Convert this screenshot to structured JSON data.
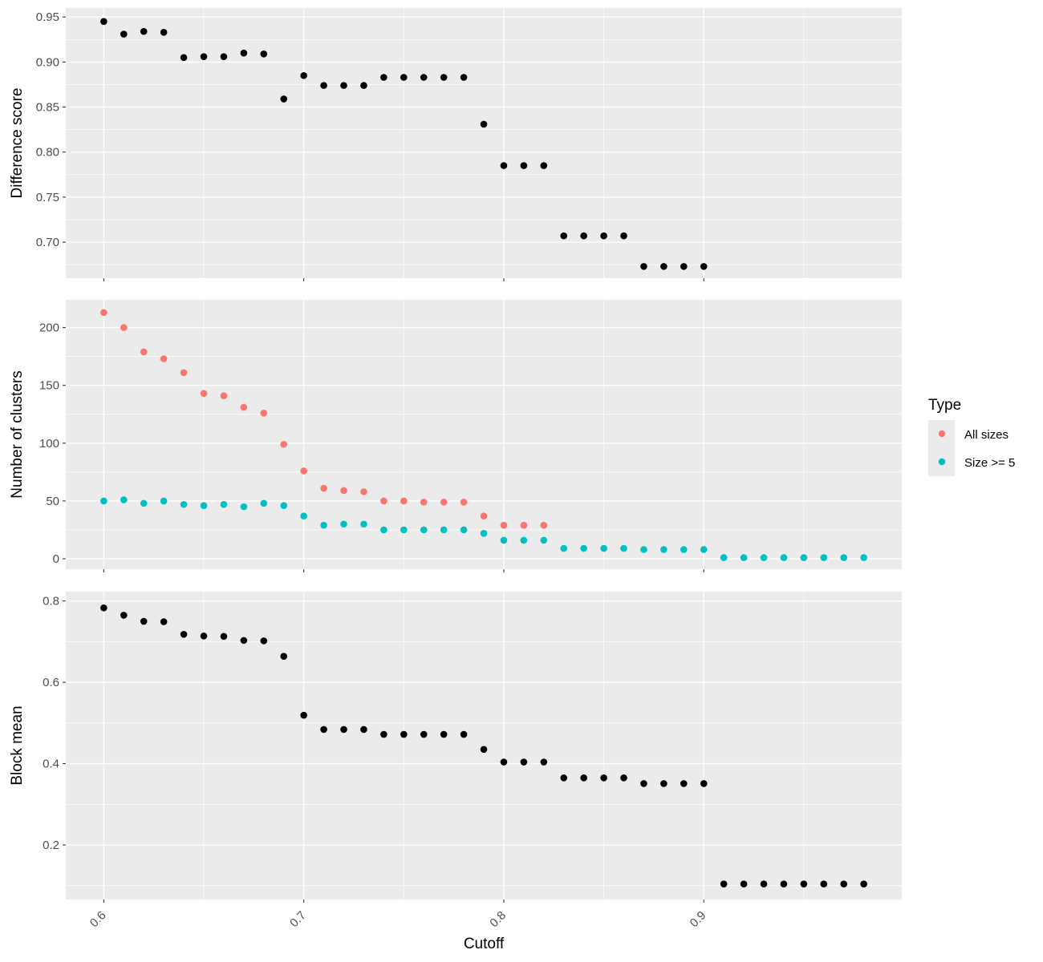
{
  "x_axis": {
    "label": "Cutoff",
    "range": [
      0.581,
      0.999
    ],
    "ticks": [
      0.6,
      0.7,
      0.8,
      0.9
    ],
    "tick_labels": [
      "0.6",
      "0.7",
      "0.8",
      "0.9"
    ]
  },
  "legend": {
    "title": "Type",
    "placement": "right",
    "entries": [
      {
        "label": "All sizes",
        "color": "#F8766D"
      },
      {
        "label": "Size >= 5",
        "color": "#00BFC4"
      }
    ]
  },
  "chart_data": [
    {
      "type": "scatter",
      "ylabel": "Difference score",
      "ylim": [
        0.66,
        0.96
      ],
      "yticks": [
        0.7,
        0.75,
        0.8,
        0.85,
        0.9,
        0.95
      ],
      "ytick_labels": [
        "0.70",
        "0.75",
        "0.80",
        "0.85",
        "0.90",
        "0.95"
      ],
      "grid": true,
      "series": [
        {
          "color": "#000000",
          "x": [
            0.6,
            0.61,
            0.62,
            0.63,
            0.64,
            0.65,
            0.66,
            0.67,
            0.68,
            0.69,
            0.7,
            0.71,
            0.72,
            0.73,
            0.74,
            0.75,
            0.76,
            0.77,
            0.78,
            0.79,
            0.8,
            0.81,
            0.82,
            0.83,
            0.84,
            0.85,
            0.86,
            0.87,
            0.88,
            0.89,
            0.9
          ],
          "y": [
            0.945,
            0.931,
            0.934,
            0.933,
            0.905,
            0.906,
            0.906,
            0.91,
            0.909,
            0.859,
            0.885,
            0.874,
            0.874,
            0.874,
            0.883,
            0.883,
            0.883,
            0.883,
            0.883,
            0.831,
            0.785,
            0.785,
            0.785,
            0.707,
            0.707,
            0.707,
            0.707,
            0.673,
            0.673,
            0.673,
            0.673
          ]
        }
      ]
    },
    {
      "type": "scatter",
      "ylabel": "Number of clusters",
      "ylim": [
        -9,
        224
      ],
      "yticks": [
        0,
        50,
        100,
        150,
        200
      ],
      "ytick_labels": [
        "0",
        "50",
        "100",
        "150",
        "200"
      ],
      "grid": true,
      "series": [
        {
          "name": "All sizes",
          "color": "#F8766D",
          "x": [
            0.6,
            0.61,
            0.62,
            0.63,
            0.64,
            0.65,
            0.66,
            0.67,
            0.68,
            0.69,
            0.7,
            0.71,
            0.72,
            0.73,
            0.74,
            0.75,
            0.76,
            0.77,
            0.78,
            0.79,
            0.8,
            0.81,
            0.82
          ],
          "y": [
            213,
            200,
            179,
            173,
            161,
            143,
            141,
            131,
            126,
            99,
            76,
            61,
            59,
            58,
            50,
            50,
            49,
            49,
            49,
            37,
            29,
            29,
            29
          ]
        },
        {
          "name": "Size >= 5",
          "color": "#00BFC4",
          "x": [
            0.6,
            0.61,
            0.62,
            0.63,
            0.64,
            0.65,
            0.66,
            0.67,
            0.68,
            0.69,
            0.7,
            0.71,
            0.72,
            0.73,
            0.74,
            0.75,
            0.76,
            0.77,
            0.78,
            0.79,
            0.8,
            0.81,
            0.82,
            0.83,
            0.84,
            0.85,
            0.86,
            0.87,
            0.88,
            0.89,
            0.9,
            0.91,
            0.92,
            0.93,
            0.94,
            0.95,
            0.96,
            0.97,
            0.98
          ],
          "y": [
            50,
            51,
            48,
            50,
            47,
            46,
            47,
            45,
            48,
            46,
            37,
            29,
            30,
            30,
            25,
            25,
            25,
            25,
            25,
            22,
            16,
            16,
            16,
            9,
            9,
            9,
            9,
            8,
            8,
            8,
            8,
            1,
            1,
            1,
            1,
            1,
            1,
            1,
            1
          ]
        }
      ]
    },
    {
      "type": "scatter",
      "ylabel": "Block mean",
      "ylim": [
        0.066,
        0.823
      ],
      "yticks": [
        0.2,
        0.4,
        0.6,
        0.8
      ],
      "ytick_labels": [
        "0.2",
        "0.4",
        "0.6",
        "0.8"
      ],
      "grid": true,
      "series": [
        {
          "color": "#000000",
          "x": [
            0.6,
            0.61,
            0.62,
            0.63,
            0.64,
            0.65,
            0.66,
            0.67,
            0.68,
            0.69,
            0.7,
            0.71,
            0.72,
            0.73,
            0.74,
            0.75,
            0.76,
            0.77,
            0.78,
            0.79,
            0.8,
            0.81,
            0.82,
            0.83,
            0.84,
            0.85,
            0.86,
            0.87,
            0.88,
            0.89,
            0.9,
            0.91,
            0.92,
            0.93,
            0.94,
            0.95,
            0.96,
            0.97,
            0.98
          ],
          "y": [
            0.783,
            0.765,
            0.75,
            0.749,
            0.718,
            0.714,
            0.713,
            0.703,
            0.702,
            0.664,
            0.519,
            0.484,
            0.484,
            0.484,
            0.472,
            0.472,
            0.472,
            0.472,
            0.472,
            0.435,
            0.404,
            0.404,
            0.404,
            0.365,
            0.365,
            0.365,
            0.365,
            0.351,
            0.351,
            0.351,
            0.351,
            0.104,
            0.104,
            0.104,
            0.104,
            0.104,
            0.104,
            0.104,
            0.104
          ]
        }
      ]
    }
  ]
}
